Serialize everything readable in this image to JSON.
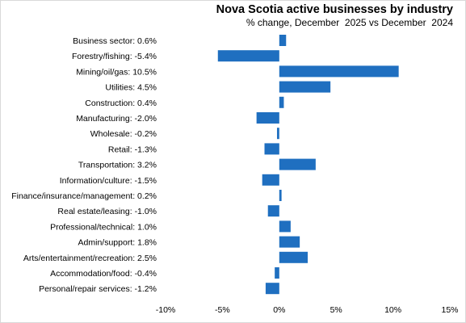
{
  "chart_data": {
    "type": "bar",
    "orientation": "horizontal",
    "title": "Nova Scotia active businesses by industry",
    "subtitle": "% change, December  2025 vs December  2024",
    "categories": [
      "Business sector: 0.6%",
      "Forestry/fishing: -5.4%",
      "Mining/oil/gas: 10.5%",
      "Utilities: 4.5%",
      "Construction: 0.4%",
      "Manufacturing: -2.0%",
      "Wholesale: -0.2%",
      "Retail: -1.3%",
      "Transportation: 3.2%",
      "Information/culture: -1.5%",
      "Finance/insurance/management: 0.2%",
      "Real estate/leasing: -1.0%",
      "Professional/technical: 1.0%",
      "Admin/support: 1.8%",
      "Arts/entertainment/recreation: 2.5%",
      "Accommodation/food: -0.4%",
      "Personal/repair services: -1.2%"
    ],
    "values": [
      0.6,
      -5.4,
      10.5,
      4.5,
      0.4,
      -2.0,
      -0.2,
      -1.3,
      3.2,
      -1.5,
      0.2,
      -1.0,
      1.0,
      1.8,
      2.5,
      -0.4,
      -1.2
    ],
    "xlim": [
      -10,
      15
    ],
    "xticks": [
      -10,
      -5,
      0,
      5,
      10,
      15
    ],
    "xtick_labels": [
      "-10%",
      "-5%",
      "0%",
      "5%",
      "10%",
      "15%"
    ],
    "bar_color": "#1f6fc0",
    "grid": false,
    "legend": "none"
  }
}
